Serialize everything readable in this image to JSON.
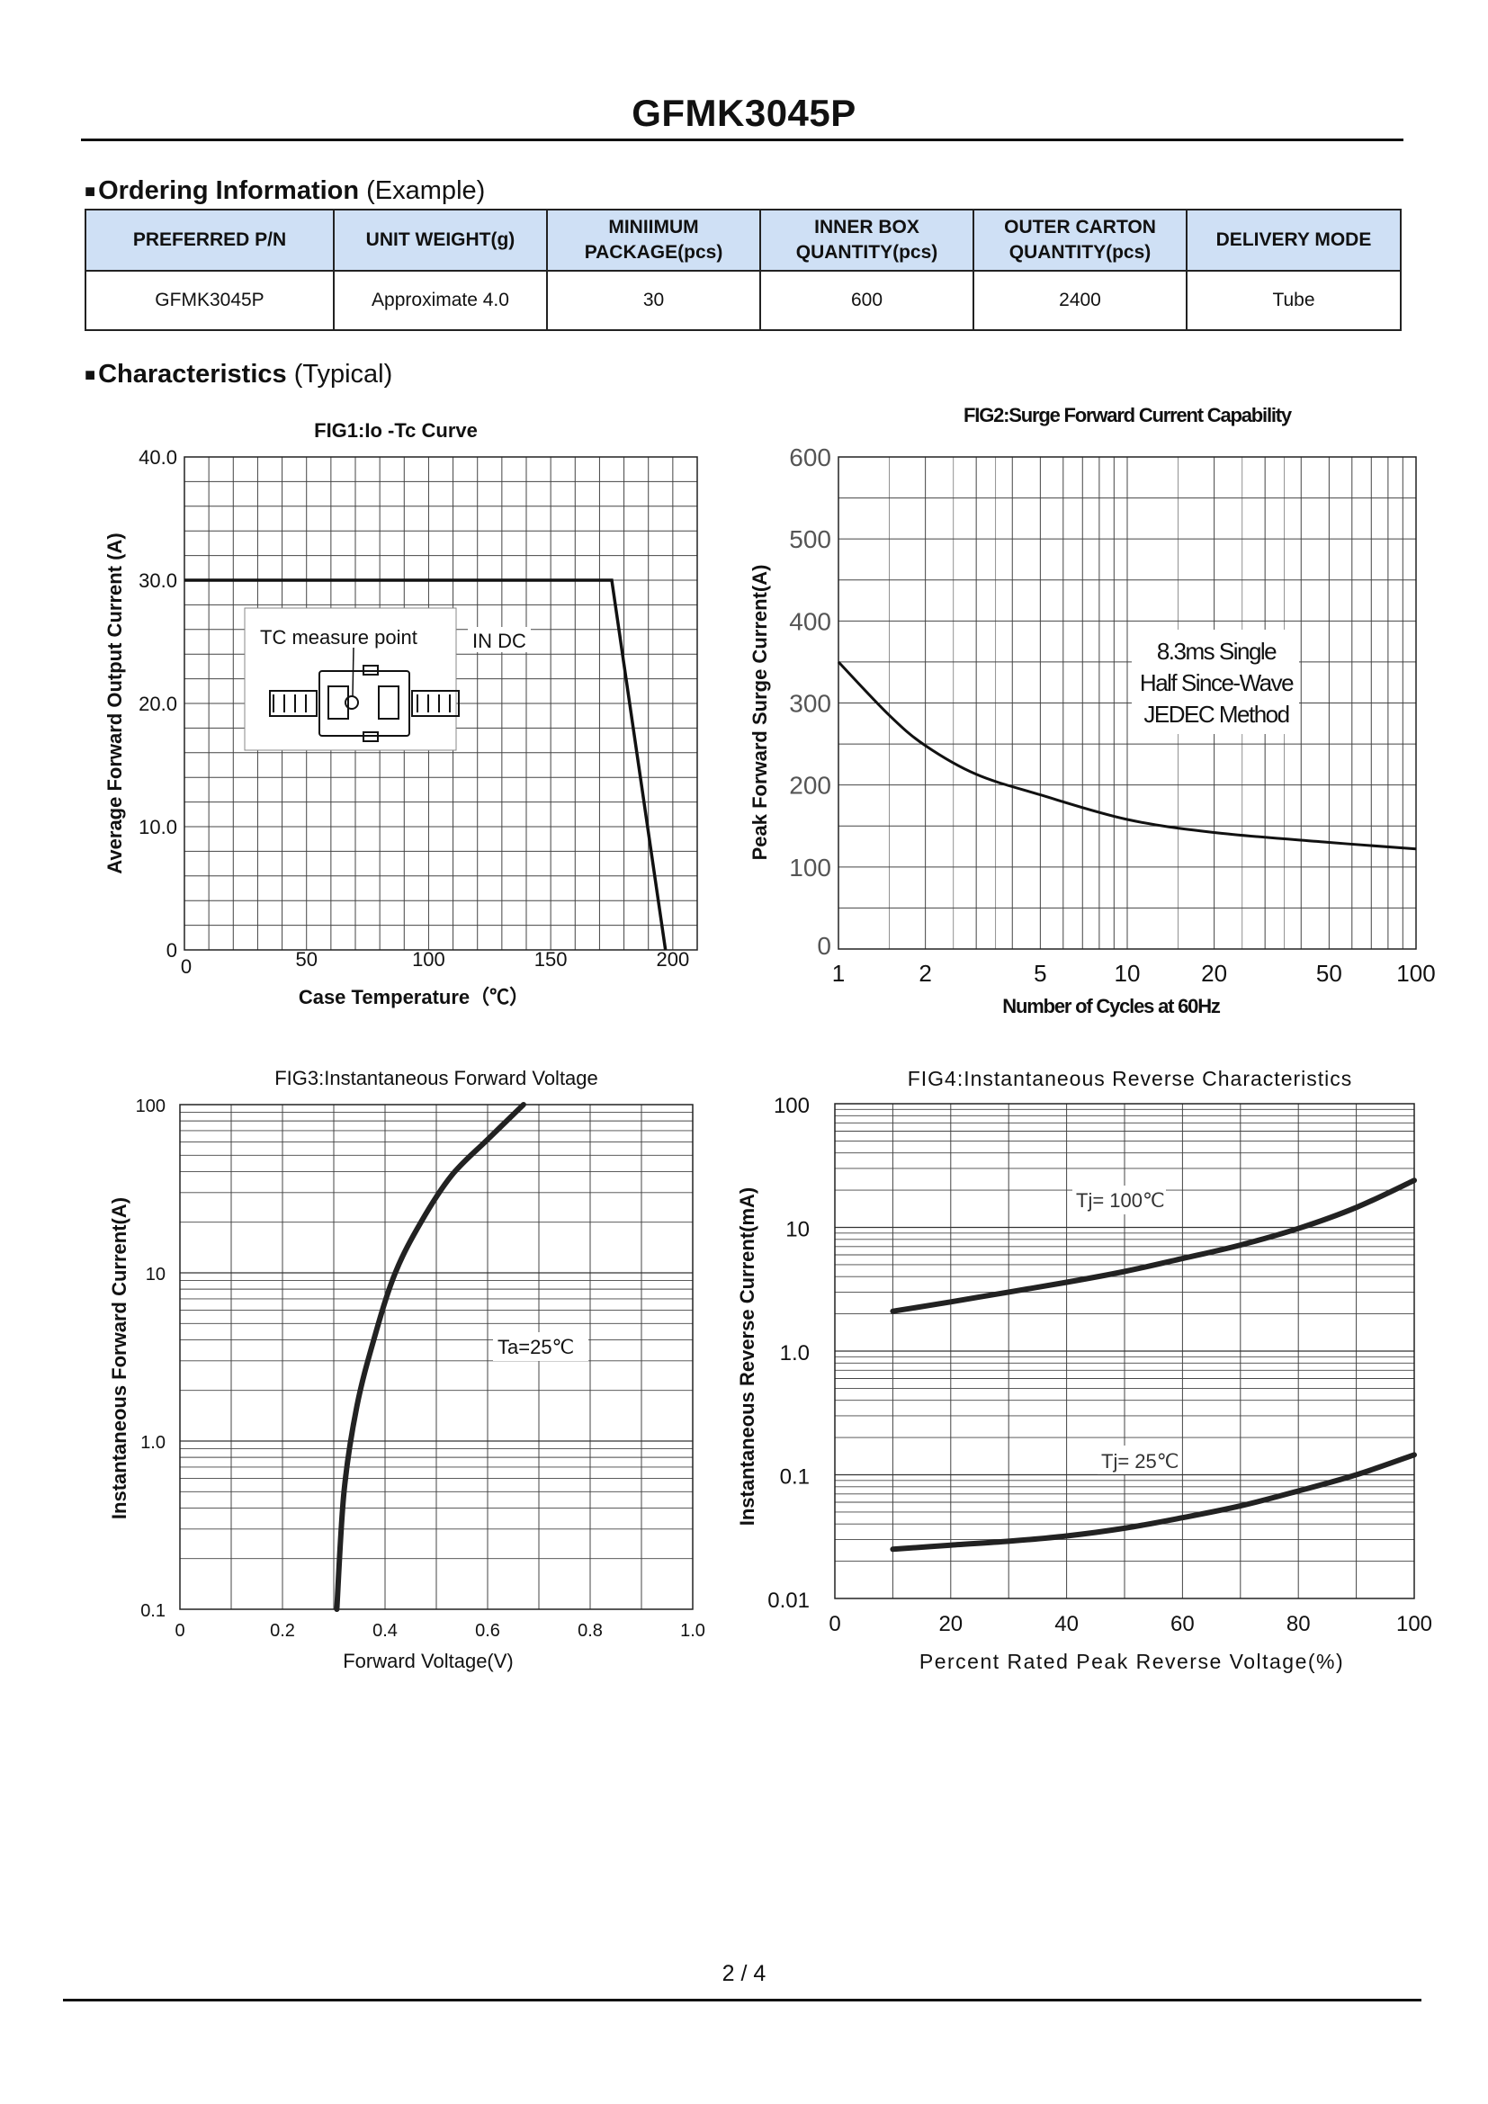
{
  "page": {
    "title": "GFMK3045P",
    "page_number": "2 / 4"
  },
  "ordering": {
    "heading_bold": "Ordering Information",
    "heading_rest": " (Example)",
    "headers": [
      "PREFERRED P/N",
      "UNIT WEIGHT(g)",
      "MINIIMUM PACKAGE(pcs)",
      "INNER BOX QUANTITY(pcs)",
      "OUTER CARTON QUANTITY(pcs)",
      "DELIVERY MODE"
    ],
    "header_lines": [
      [
        "PREFERRED P/N"
      ],
      [
        "UNIT WEIGHT(g)"
      ],
      [
        "MINIIMUM",
        "PACKAGE(pcs)"
      ],
      [
        "INNER BOX",
        "QUANTITY(pcs)"
      ],
      [
        "OUTER CARTON",
        "QUANTITY(pcs)"
      ],
      [
        "DELIVERY MODE"
      ]
    ],
    "row": [
      "GFMK3045P",
      "Approximate 4.0",
      "30",
      "600",
      "2400",
      "Tube"
    ],
    "header_bg": "#cfe0f5"
  },
  "characteristics": {
    "heading_bold": "Characteristics",
    "heading_rest": " (Typical)"
  },
  "chart_data": [
    {
      "id": "fig1",
      "type": "line",
      "title": "FIG1:Io -Tc Curve",
      "xlabel": "Case Temperature（℃）",
      "ylabel": "Average Forward Output Current (A)",
      "xlim": [
        0,
        210
      ],
      "ylim": [
        0,
        40
      ],
      "x_ticks": [
        "0",
        "50",
        "100",
        "150",
        "200"
      ],
      "y_ticks": [
        "0",
        "10.0",
        "20.0",
        "30.0",
        "40.0"
      ],
      "grid": true,
      "annotations": [
        "TC measure point",
        "IN DC"
      ],
      "series": [
        {
          "x": [
            0,
            175,
            197
          ],
          "y": [
            30,
            30,
            0
          ]
        }
      ]
    },
    {
      "id": "fig2",
      "type": "line",
      "title": "FIG2:Surge Forward Current Capability",
      "xlabel": "Number of Cycles at 60Hz",
      "ylabel": "Peak Forward Surge Current(A)",
      "xscale": "log",
      "xlim": [
        1,
        100
      ],
      "ylim": [
        0,
        600
      ],
      "x_ticks": [
        "1",
        "2",
        "5",
        "10",
        "20",
        "50",
        "100"
      ],
      "y_ticks": [
        "0",
        "100",
        "200",
        "300",
        "400",
        "500",
        "600"
      ],
      "grid": true,
      "annotations": [
        "8.3ms Single",
        "Half Since-Wave",
        "JEDEC Method"
      ],
      "series": [
        {
          "x": [
            1,
            1.5,
            2,
            3,
            5,
            10,
            20,
            50,
            100
          ],
          "y": [
            350,
            285,
            248,
            213,
            188,
            158,
            142,
            130,
            122
          ]
        }
      ]
    },
    {
      "id": "fig3",
      "type": "line",
      "title": "FIG3:Instantaneous Forward Voltage",
      "xlabel": "Forward Voltage(V)",
      "ylabel": "Instantaneous Forward Current(A)",
      "yscale": "log",
      "xlim": [
        0,
        1.0
      ],
      "ylim": [
        0.1,
        100
      ],
      "x_ticks": [
        "0",
        "0.2",
        "0.4",
        "0.6",
        "0.8",
        "1.0"
      ],
      "y_ticks": [
        "0.1",
        "1.0",
        "10",
        "100"
      ],
      "grid": true,
      "annotations": [
        "Ta=25℃"
      ],
      "series": [
        {
          "x": [
            0.306,
            0.32,
            0.345,
            0.38,
            0.42,
            0.47,
            0.53,
            0.6,
            0.67
          ],
          "y": [
            0.1,
            0.5,
            1.6,
            4.2,
            10,
            20,
            38,
            62,
            100
          ]
        }
      ]
    },
    {
      "id": "fig4",
      "type": "line",
      "title": "FIG4:Instantaneous Reverse Characteristics",
      "xlabel": "Percent Rated Peak Reverse Voltage(%)",
      "ylabel": "Instantaneous Reverse Current(mA)",
      "yscale": "log",
      "xlim": [
        0,
        100
      ],
      "ylim": [
        0.01,
        100
      ],
      "x_ticks": [
        "0",
        "20",
        "40",
        "60",
        "80",
        "100"
      ],
      "y_ticks": [
        "0.01",
        "0.1",
        "1.0",
        "10",
        "100"
      ],
      "grid": true,
      "series": [
        {
          "name": "Tj= 100℃",
          "x": [
            10,
            20,
            30,
            40,
            50,
            60,
            70,
            80,
            90,
            100
          ],
          "y": [
            2.1,
            2.5,
            3.0,
            3.6,
            4.4,
            5.6,
            7.2,
            9.8,
            14.5,
            24
          ]
        },
        {
          "name": "Tj= 25℃",
          "x": [
            10,
            20,
            30,
            40,
            50,
            60,
            70,
            80,
            90,
            100
          ],
          "y": [
            0.025,
            0.027,
            0.029,
            0.032,
            0.037,
            0.045,
            0.056,
            0.074,
            0.1,
            0.145
          ]
        }
      ]
    }
  ]
}
